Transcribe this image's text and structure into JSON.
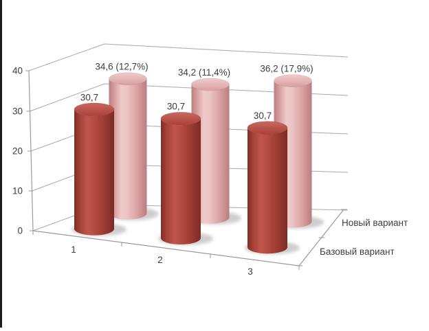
{
  "window": {
    "background": "#ffffff",
    "left_border_color": "#1c1c1c"
  },
  "chart_data": {
    "type": "bar",
    "subtype": "3d-cylinder",
    "title": "",
    "categories": [
      "1",
      "2",
      "3"
    ],
    "series": [
      {
        "name": "Базовый вариант",
        "values": [
          30.7,
          30.7,
          30.7
        ],
        "data_labels": [
          "30,7",
          "30,7",
          "30,7"
        ],
        "color": "#b04a41",
        "body_gradient": [
          "#7f2d28",
          "#a64237",
          "#bf564c",
          "#b54c43",
          "#a03d34",
          "#7c2b26"
        ],
        "top_gradient": [
          "#c9685f",
          "#ab4138"
        ]
      },
      {
        "name": "Новый вариант",
        "values": [
          34.6,
          34.2,
          36.2
        ],
        "data_labels": [
          "34,6 (12,7%)",
          "34,2 (11,4%)",
          "36,2 (17,9%)"
        ],
        "color": "#e6b2b2",
        "body_gradient": [
          "#bd7f81",
          "#d79fa0",
          "#f0cbca",
          "#ecc2c2",
          "#dba5a6",
          "#bb7d7f"
        ],
        "top_gradient": [
          "#f0cbcb",
          "#d99fa0"
        ]
      }
    ],
    "ylim": [
      0,
      40
    ],
    "yticks": [
      "0",
      "10",
      "20",
      "30",
      "40"
    ],
    "grid": true,
    "gridline_color": "#a9a9a9",
    "axis_color": "#9a9a9a",
    "text_color": "#3d3d3d",
    "series_axis_labels_position": "right",
    "legend": "none"
  }
}
